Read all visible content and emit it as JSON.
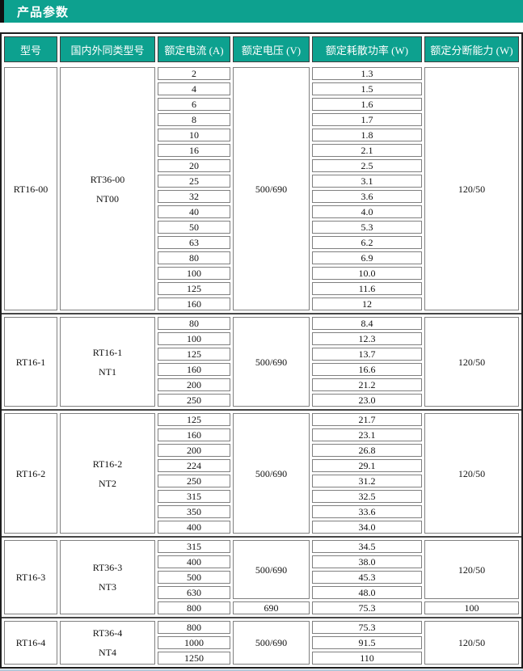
{
  "title": "产品参数",
  "colors": {
    "accent": "#0da18f",
    "cell_border": "#7f7f7f",
    "outer_border": "#1d1d1d"
  },
  "table": {
    "headers": [
      "型号",
      "国内外同类型号",
      "额定电流 (A)",
      "额定电压 (V)",
      "额定耗散功率 (W)",
      "额定分断能力 (W)"
    ],
    "sections": [
      {
        "model": "RT16-00",
        "equivalent": [
          "RT36-00",
          "NT00"
        ],
        "subgroups": [
          {
            "voltage": "500/690",
            "breaking": "120/50",
            "rows": [
              {
                "current": "2",
                "power": "1.3"
              },
              {
                "current": "4",
                "power": "1.5"
              },
              {
                "current": "6",
                "power": "1.6"
              },
              {
                "current": "8",
                "power": "1.7"
              },
              {
                "current": "10",
                "power": "1.8"
              },
              {
                "current": "16",
                "power": "2.1"
              },
              {
                "current": "20",
                "power": "2.5"
              },
              {
                "current": "25",
                "power": "3.1"
              },
              {
                "current": "32",
                "power": "3.6"
              },
              {
                "current": "40",
                "power": "4.0"
              },
              {
                "current": "50",
                "power": "5.3"
              },
              {
                "current": "63",
                "power": "6.2"
              },
              {
                "current": "80",
                "power": "6.9"
              },
              {
                "current": "100",
                "power": "10.0"
              },
              {
                "current": "125",
                "power": "11.6"
              },
              {
                "current": "160",
                "power": "12"
              }
            ]
          }
        ]
      },
      {
        "model": "RT16-1",
        "equivalent": [
          "RT16-1",
          "NT1"
        ],
        "subgroups": [
          {
            "voltage": "500/690",
            "breaking": "120/50",
            "rows": [
              {
                "current": "80",
                "power": "8.4"
              },
              {
                "current": "100",
                "power": "12.3"
              },
              {
                "current": "125",
                "power": "13.7"
              },
              {
                "current": "160",
                "power": "16.6"
              },
              {
                "current": "200",
                "power": "21.2"
              },
              {
                "current": "250",
                "power": "23.0"
              }
            ]
          }
        ]
      },
      {
        "model": "RT16-2",
        "equivalent": [
          "RT16-2",
          "NT2"
        ],
        "subgroups": [
          {
            "voltage": "500/690",
            "breaking": "120/50",
            "rows": [
              {
                "current": "125",
                "power": "21.7"
              },
              {
                "current": "160",
                "power": "23.1"
              },
              {
                "current": "200",
                "power": "26.8"
              },
              {
                "current": "224",
                "power": "29.1"
              },
              {
                "current": "250",
                "power": "31.2"
              },
              {
                "current": "315",
                "power": "32.5"
              },
              {
                "current": "350",
                "power": "33.6"
              },
              {
                "current": "400",
                "power": "34.0"
              }
            ]
          }
        ]
      },
      {
        "model": "RT16-3",
        "equivalent": [
          "RT36-3",
          "NT3"
        ],
        "subgroups": [
          {
            "voltage": "500/690",
            "breaking": "120/50",
            "rows": [
              {
                "current": "315",
                "power": "34.5"
              },
              {
                "current": "400",
                "power": "38.0"
              },
              {
                "current": "500",
                "power": "45.3"
              },
              {
                "current": "630",
                "power": "48.0"
              }
            ]
          },
          {
            "voltage": "690",
            "breaking": "100",
            "rows": [
              {
                "current": "800",
                "power": "75.3"
              }
            ]
          }
        ]
      },
      {
        "model": "RT16-4",
        "equivalent": [
          "RT36-4",
          "NT4"
        ],
        "subgroups": [
          {
            "voltage": "500/690",
            "breaking": "120/50",
            "rows": [
              {
                "current": "800",
                "power": "75.3"
              },
              {
                "current": "1000",
                "power": "91.5"
              },
              {
                "current": "1250",
                "power": "110"
              }
            ]
          }
        ]
      }
    ]
  }
}
